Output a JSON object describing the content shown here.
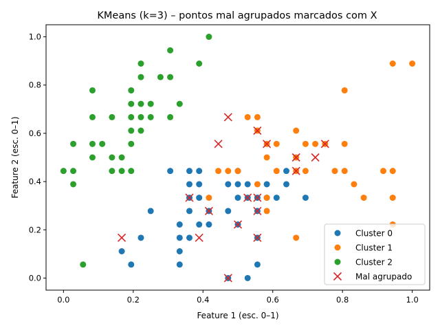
{
  "chart_data": {
    "type": "scatter",
    "title": "KMeans (k=3) – pontos mal agrupados marcados com X",
    "xlabel": "Feature 1 (esc. 0–1)",
    "ylabel": "Feature 2 (esc. 0–1)",
    "xlim": [
      -0.05,
      1.05
    ],
    "ylim": [
      -0.05,
      1.05
    ],
    "x_ticks": [
      "0.0",
      "0.2",
      "0.4",
      "0.6",
      "0.8",
      "1.0"
    ],
    "y_ticks": [
      "0.0",
      "0.2",
      "0.4",
      "0.6",
      "0.8",
      "1.0"
    ],
    "grid": false,
    "legend_position": "lower-right",
    "series": [
      {
        "name": "Cluster 0",
        "color": "#1f77b4",
        "marker": "circle",
        "points": [
          [
            0.306,
            0.444
          ],
          [
            0.361,
            0.444
          ],
          [
            0.389,
            0.444
          ],
          [
            0.361,
            0.389
          ],
          [
            0.389,
            0.389
          ],
          [
            0.361,
            0.333
          ],
          [
            0.389,
            0.333
          ],
          [
            0.25,
            0.278
          ],
          [
            0.361,
            0.278
          ],
          [
            0.417,
            0.278
          ],
          [
            0.333,
            0.222
          ],
          [
            0.389,
            0.222
          ],
          [
            0.417,
            0.222
          ],
          [
            0.333,
            0.167
          ],
          [
            0.361,
            0.167
          ],
          [
            0.333,
            0.111
          ],
          [
            0.167,
            0.111
          ],
          [
            0.222,
            0.167
          ],
          [
            0.194,
            0.056
          ],
          [
            0.333,
            0.056
          ],
          [
            0.472,
            0.278
          ],
          [
            0.472,
            0.389
          ],
          [
            0.5,
            0.389
          ],
          [
            0.528,
            0.389
          ],
          [
            0.5,
            0.333
          ],
          [
            0.528,
            0.333
          ],
          [
            0.556,
            0.333
          ],
          [
            0.583,
            0.333
          ],
          [
            0.611,
            0.333
          ],
          [
            0.556,
            0.278
          ],
          [
            0.583,
            0.389
          ],
          [
            0.639,
            0.389
          ],
          [
            0.639,
            0.444
          ],
          [
            0.694,
            0.333
          ],
          [
            0.556,
            0.056
          ],
          [
            0.528,
            0.0
          ],
          [
            0.472,
            0.0
          ],
          [
            0.5,
            0.444
          ],
          [
            0.5,
            0.222
          ],
          [
            0.556,
            0.167
          ]
        ]
      },
      {
        "name": "Cluster 1",
        "color": "#ff7f0e",
        "marker": "circle",
        "points": [
          [
            0.944,
            0.889
          ],
          [
            1.0,
            0.889
          ],
          [
            0.806,
            0.778
          ],
          [
            0.528,
            0.667
          ],
          [
            0.556,
            0.667
          ],
          [
            0.556,
            0.611
          ],
          [
            0.667,
            0.611
          ],
          [
            0.583,
            0.556
          ],
          [
            0.611,
            0.556
          ],
          [
            0.694,
            0.556
          ],
          [
            0.722,
            0.556
          ],
          [
            0.806,
            0.556
          ],
          [
            0.583,
            0.5
          ],
          [
            0.667,
            0.5
          ],
          [
            0.444,
            0.444
          ],
          [
            0.472,
            0.444
          ],
          [
            0.5,
            0.444
          ],
          [
            0.611,
            0.444
          ],
          [
            0.667,
            0.444
          ],
          [
            0.694,
            0.444
          ],
          [
            0.778,
            0.444
          ],
          [
            0.806,
            0.444
          ],
          [
            0.917,
            0.444
          ],
          [
            0.944,
            0.444
          ],
          [
            0.556,
            0.389
          ],
          [
            0.833,
            0.389
          ],
          [
            0.417,
            0.333
          ],
          [
            0.583,
            0.333
          ],
          [
            0.861,
            0.333
          ],
          [
            0.944,
            0.333
          ],
          [
            0.583,
            0.278
          ],
          [
            0.944,
            0.222
          ],
          [
            0.667,
            0.167
          ],
          [
            0.75,
            0.556
          ]
        ]
      },
      {
        "name": "Cluster 2",
        "color": "#2ca02c",
        "marker": "circle",
        "points": [
          [
            0.417,
            1.0
          ],
          [
            0.306,
            0.944
          ],
          [
            0.222,
            0.889
          ],
          [
            0.389,
            0.889
          ],
          [
            0.222,
            0.833
          ],
          [
            0.278,
            0.833
          ],
          [
            0.306,
            0.833
          ],
          [
            0.083,
            0.778
          ],
          [
            0.194,
            0.778
          ],
          [
            0.194,
            0.722
          ],
          [
            0.222,
            0.722
          ],
          [
            0.25,
            0.722
          ],
          [
            0.333,
            0.722
          ],
          [
            0.083,
            0.667
          ],
          [
            0.139,
            0.667
          ],
          [
            0.194,
            0.667
          ],
          [
            0.222,
            0.667
          ],
          [
            0.25,
            0.667
          ],
          [
            0.306,
            0.667
          ],
          [
            0.194,
            0.611
          ],
          [
            0.222,
            0.611
          ],
          [
            0.028,
            0.556
          ],
          [
            0.083,
            0.556
          ],
          [
            0.111,
            0.556
          ],
          [
            0.194,
            0.556
          ],
          [
            0.083,
            0.5
          ],
          [
            0.139,
            0.5
          ],
          [
            0.167,
            0.5
          ],
          [
            0.0,
            0.444
          ],
          [
            0.028,
            0.444
          ],
          [
            0.139,
            0.444
          ],
          [
            0.167,
            0.444
          ],
          [
            0.194,
            0.444
          ],
          [
            0.028,
            0.389
          ],
          [
            0.056,
            0.056
          ]
        ]
      },
      {
        "name": "Mal agrupado",
        "color": "#d62728",
        "marker": "x",
        "points": [
          [
            0.472,
            0.667
          ],
          [
            0.556,
            0.611
          ],
          [
            0.444,
            0.556
          ],
          [
            0.583,
            0.556
          ],
          [
            0.75,
            0.556
          ],
          [
            0.667,
            0.5
          ],
          [
            0.722,
            0.5
          ],
          [
            0.667,
            0.444
          ],
          [
            0.361,
            0.333
          ],
          [
            0.528,
            0.333
          ],
          [
            0.556,
            0.333
          ],
          [
            0.417,
            0.278
          ],
          [
            0.556,
            0.278
          ],
          [
            0.5,
            0.222
          ],
          [
            0.167,
            0.167
          ],
          [
            0.389,
            0.167
          ],
          [
            0.556,
            0.167
          ],
          [
            0.472,
            0.0
          ]
        ]
      }
    ]
  }
}
